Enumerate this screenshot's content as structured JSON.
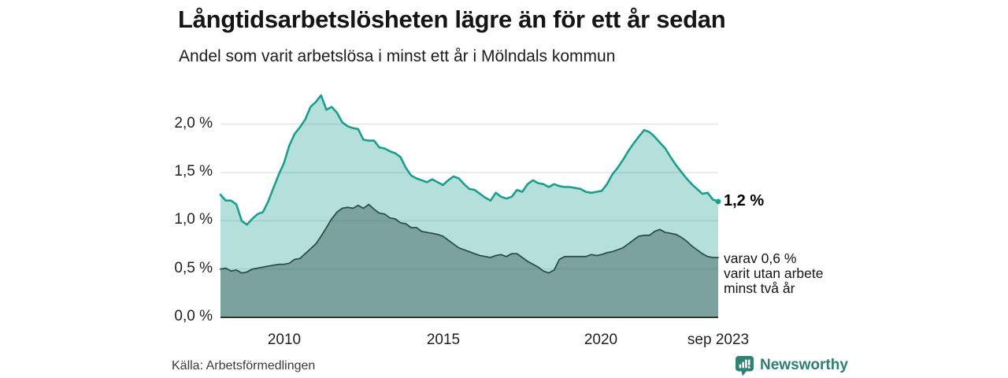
{
  "header": {
    "title": "Långtidsarbetslösheten lägre än för ett år sedan",
    "subtitle": "Andel som varit arbetslösa i minst ett år i Mölndals kommun"
  },
  "chart_data": {
    "type": "area",
    "title": "Långtidsarbetslösheten lägre än för ett år sedan",
    "subtitle": "Andel som varit arbetslösa i minst ett år i Mölndals kommun",
    "x_axis": {
      "range_years": [
        2008.0,
        2023.6667
      ],
      "tick_labels": [
        "2010",
        "2015",
        "2020",
        "sep 2023"
      ],
      "tick_positions_years": [
        2010,
        2015,
        2020,
        2023.6667
      ]
    },
    "y_axis": {
      "unit": "%",
      "range": [
        0,
        2.35
      ],
      "tick_values": [
        0.0,
        0.5,
        1.0,
        1.5,
        2.0
      ],
      "tick_labels": [
        "0,0 %",
        "0,5 %",
        "1,0 %",
        "1,5 %",
        "2,0 %"
      ],
      "gridlines": true
    },
    "style": {
      "grid_color": "#d9d9d9",
      "axis_color": "#333333",
      "background": "#ffffff"
    },
    "sampling": {
      "x_start_year": 2008.0,
      "x_step_years": 0.166667,
      "points_per_series": 95
    },
    "series": [
      {
        "name": "Andel arbetslösa minst ett år",
        "color": "#1a9e8e",
        "fill": "rgba(26,158,142,0.33)",
        "stroke_width": 2.6,
        "end_dot": true,
        "end_label": "1,2 %",
        "values": [
          1.27,
          1.21,
          1.21,
          1.17,
          1.0,
          0.96,
          1.02,
          1.07,
          1.09,
          1.2,
          1.34,
          1.48,
          1.6,
          1.78,
          1.9,
          1.97,
          2.05,
          2.18,
          2.23,
          2.3,
          2.15,
          2.18,
          2.12,
          2.02,
          1.98,
          1.96,
          1.95,
          1.84,
          1.83,
          1.83,
          1.76,
          1.75,
          1.72,
          1.7,
          1.66,
          1.55,
          1.47,
          1.44,
          1.42,
          1.4,
          1.43,
          1.4,
          1.37,
          1.42,
          1.46,
          1.44,
          1.38,
          1.33,
          1.32,
          1.28,
          1.24,
          1.21,
          1.29,
          1.25,
          1.23,
          1.25,
          1.32,
          1.3,
          1.38,
          1.42,
          1.39,
          1.38,
          1.35,
          1.38,
          1.36,
          1.35,
          1.35,
          1.34,
          1.33,
          1.3,
          1.29,
          1.3,
          1.31,
          1.38,
          1.48,
          1.55,
          1.63,
          1.72,
          1.8,
          1.87,
          1.94,
          1.92,
          1.87,
          1.81,
          1.75,
          1.66,
          1.58,
          1.51,
          1.44,
          1.38,
          1.33,
          1.28,
          1.29,
          1.22,
          1.2
        ]
      },
      {
        "name": "Varav arbetslösa minst två år",
        "color": "#2e4f4a",
        "fill": "rgba(46,79,74,0.42)",
        "stroke_width": 1.8,
        "end_dot": false,
        "end_label": "varav 0,6 % varit utan arbete minst två år",
        "values": [
          0.5,
          0.51,
          0.48,
          0.49,
          0.46,
          0.47,
          0.5,
          0.51,
          0.52,
          0.53,
          0.54,
          0.55,
          0.55,
          0.56,
          0.6,
          0.61,
          0.66,
          0.71,
          0.76,
          0.84,
          0.93,
          1.02,
          1.09,
          1.13,
          1.14,
          1.13,
          1.16,
          1.13,
          1.17,
          1.12,
          1.08,
          1.07,
          1.03,
          1.02,
          0.98,
          0.97,
          0.93,
          0.93,
          0.89,
          0.88,
          0.87,
          0.86,
          0.84,
          0.8,
          0.76,
          0.72,
          0.7,
          0.68,
          0.66,
          0.64,
          0.63,
          0.62,
          0.64,
          0.65,
          0.63,
          0.66,
          0.66,
          0.62,
          0.58,
          0.55,
          0.52,
          0.48,
          0.46,
          0.49,
          0.6,
          0.63,
          0.63,
          0.63,
          0.63,
          0.63,
          0.65,
          0.64,
          0.65,
          0.67,
          0.68,
          0.7,
          0.72,
          0.76,
          0.8,
          0.84,
          0.85,
          0.85,
          0.89,
          0.91,
          0.88,
          0.87,
          0.86,
          0.83,
          0.79,
          0.74,
          0.7,
          0.66,
          0.63,
          0.62,
          0.62
        ]
      }
    ],
    "legend_position": "none"
  },
  "annotations": {
    "latest_value": "1,2 %",
    "note_lines": [
      "varav 0,6 %",
      "varit utan arbete",
      "minst två år"
    ]
  },
  "footer": {
    "source": "Källa: Arbetsförmedlingen",
    "brand": "Newsworthy",
    "brand_color": "#2f7e71",
    "brand_icon_color": "#2f8276"
  }
}
